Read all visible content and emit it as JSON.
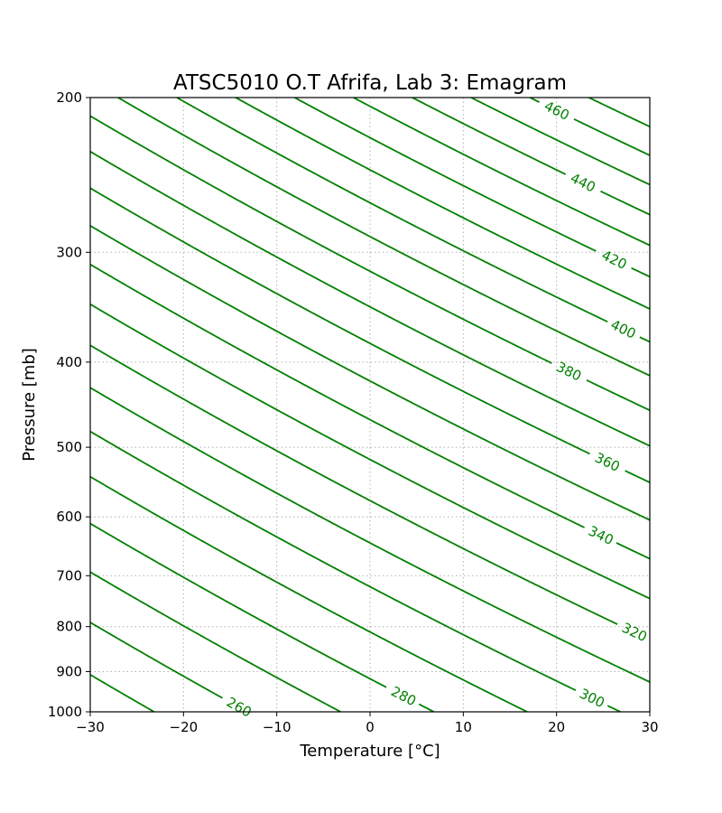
{
  "chart_data": {
    "type": "line",
    "title": "ATSC5010 O.T Afrifa, Lab 3: Emagram",
    "xlabel": "Temperature [°C]",
    "ylabel": "Pressure [mb]",
    "xlim": [
      -30,
      30
    ],
    "ylim": [
      1000,
      200
    ],
    "yscale": "log",
    "grid": true,
    "grid_style": "dotted",
    "x_ticks": [
      -30,
      -20,
      -10,
      0,
      10,
      20,
      30
    ],
    "x_tick_labels": [
      "−30",
      "−20",
      "−10",
      "0",
      "10",
      "20",
      "30"
    ],
    "y_ticks": [
      200,
      300,
      400,
      500,
      600,
      700,
      800,
      900,
      1000
    ],
    "y_tick_labels": [
      "200",
      "300",
      "400",
      "500",
      "600",
      "700",
      "800",
      "900",
      "1000"
    ],
    "line_color": "#008000",
    "series_kind": "dry adiabats (potential temperature, K)",
    "theta_levels": [
      250,
      260,
      270,
      280,
      290,
      300,
      310,
      320,
      330,
      340,
      350,
      360,
      370,
      380,
      390,
      400,
      410,
      420,
      430,
      440,
      450,
      460,
      470
    ],
    "labeled_levels": [
      {
        "text": "260",
        "value": 260,
        "T": -15,
        "p": 988
      },
      {
        "text": "280",
        "value": 280,
        "T": 3,
        "p": 960
      },
      {
        "text": "300",
        "value": 300,
        "T": 24,
        "p": 965
      },
      {
        "text": "320",
        "value": 320,
        "T": 28,
        "p": 812
      },
      {
        "text": "340",
        "value": 340,
        "T": 24,
        "p": 630
      },
      {
        "text": "360",
        "value": 360,
        "T": 27,
        "p": 520
      },
      {
        "text": "380",
        "value": 380,
        "T": 21,
        "p": 410
      },
      {
        "text": "400",
        "value": 400,
        "T": 27,
        "p": 367
      },
      {
        "text": "420",
        "value": 420,
        "T": 27,
        "p": 306
      },
      {
        "text": "440",
        "value": 440,
        "T": 28,
        "p": 250
      },
      {
        "text": "460",
        "value": 460,
        "T": 20,
        "p": 207
      }
    ]
  }
}
